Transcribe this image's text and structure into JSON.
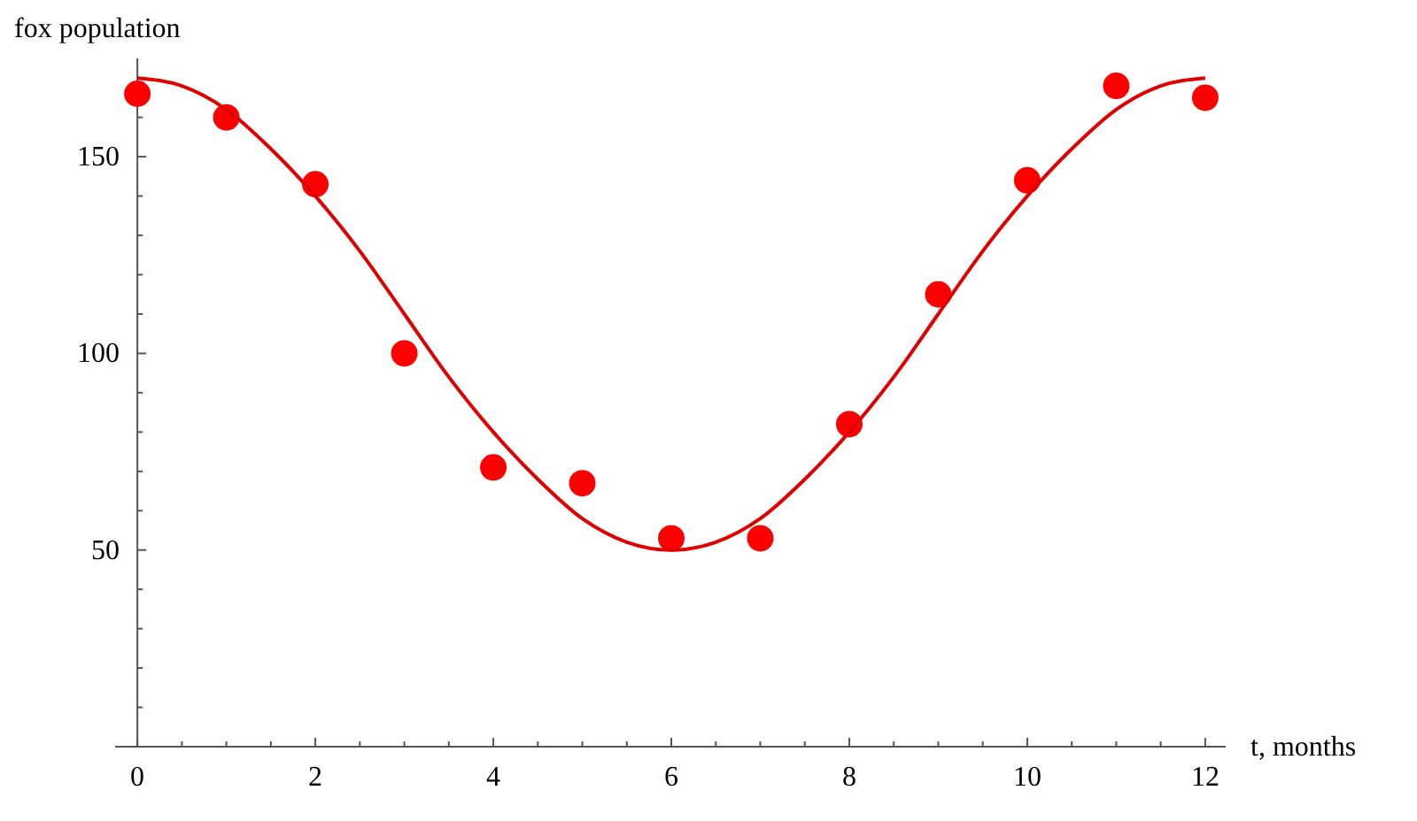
{
  "chart_data": {
    "type": "scatter",
    "xlabel": "t, months",
    "ylabel": "fox population",
    "x": [
      0,
      1,
      2,
      3,
      4,
      5,
      6,
      7,
      8,
      9,
      10,
      11,
      12
    ],
    "series": [
      {
        "color": "#ff0000",
        "marker": "circle",
        "values": [
          166,
          160,
          143,
          100,
          71,
          67,
          53,
          53,
          82,
          115,
          144,
          168,
          165
        ]
      },
      {
        "type": "line",
        "color": "#e00000",
        "line_style": "solid",
        "x": [
          0,
          0.5,
          1,
          1.5,
          2,
          2.5,
          3,
          3.5,
          4,
          4.5,
          5,
          5.5,
          6,
          6.5,
          7,
          7.5,
          8,
          8.5,
          9,
          9.5,
          10,
          10.5,
          11,
          11.5,
          12
        ],
        "values": [
          170,
          168,
          162,
          152,
          140,
          126,
          110,
          94,
          80,
          68,
          58,
          52,
          50,
          52,
          58,
          68,
          80,
          94,
          110,
          126,
          140,
          152,
          162,
          168,
          170
        ]
      }
    ],
    "xlim": [
      -0.25,
      12.23
    ],
    "ylim": [
      0,
      175
    ],
    "xticks": [
      0,
      {
        "value": 0.5,
        "label": null
      },
      {
        "value": 1,
        "label": null
      },
      {
        "value": 1.5,
        "label": null
      },
      2,
      {
        "value": 2.5,
        "label": null
      },
      {
        "value": 3,
        "label": null
      },
      {
        "value": 3.5,
        "label": null
      },
      4,
      {
        "value": 4.5,
        "label": null
      },
      {
        "value": 5,
        "label": null
      },
      {
        "value": 5.5,
        "label": null
      },
      6,
      {
        "value": 6.5,
        "label": null
      },
      {
        "value": 7,
        "label": null
      },
      {
        "value": 7.5,
        "label": null
      },
      8,
      {
        "value": 8.5,
        "label": null
      },
      {
        "value": 9,
        "label": null
      },
      {
        "value": 9.5,
        "label": null
      },
      10,
      {
        "value": 10.5,
        "label": null
      },
      {
        "value": 11,
        "label": null
      },
      {
        "value": 11.5,
        "label": null
      },
      12
    ],
    "yticks": [
      {
        "value": 10,
        "label": null
      },
      {
        "value": 20,
        "label": null
      },
      {
        "value": 30,
        "label": null
      },
      {
        "value": 40,
        "label": null
      },
      50,
      {
        "value": 60,
        "label": null
      },
      {
        "value": 70,
        "label": null
      },
      {
        "value": 80,
        "label": null
      },
      {
        "value": 90,
        "label": null
      },
      100,
      {
        "value": 110,
        "label": null
      },
      {
        "value": 120,
        "label": null
      },
      {
        "value": 130,
        "label": null
      },
      {
        "value": 140,
        "label": null
      },
      150,
      {
        "value": 160,
        "label": null
      },
      {
        "value": 170,
        "label": null
      }
    ],
    "grid": false
  }
}
